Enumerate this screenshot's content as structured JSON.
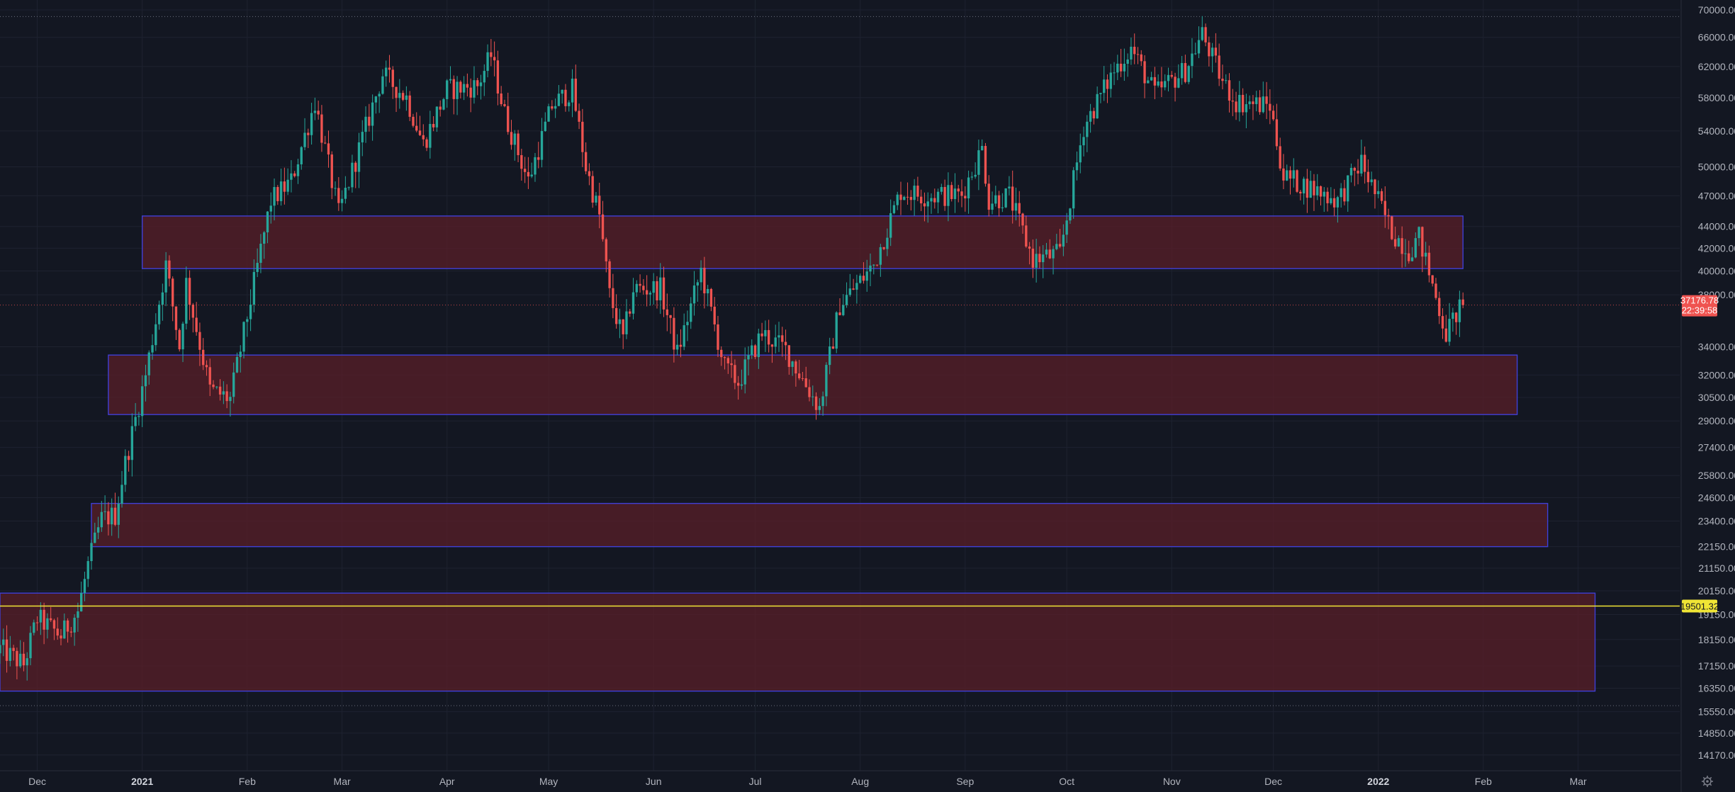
{
  "chart_data": {
    "type": "candlestick",
    "y_scale": "log",
    "ylim": [
      13700,
      71500
    ],
    "y_ticks": [
      "70000.00",
      "66000.00",
      "62000.00",
      "58000.00",
      "54000.00",
      "50000.00",
      "47000.00",
      "44000.00",
      "42000.00",
      "40000.00",
      "38000.00",
      "34000.00",
      "32000.00",
      "30500.00",
      "29000.00",
      "27400.00",
      "25800.00",
      "24600.00",
      "23400.00",
      "22150.00",
      "21150.00",
      "20150.00",
      "19150.00",
      "18150.00",
      "17150.00",
      "16350.00",
      "15550.00",
      "14850.00",
      "14170.00"
    ],
    "x_ticks": [
      {
        "label": "Dec",
        "date": "2020-12-01"
      },
      {
        "label": "2021",
        "date": "2021-01-01",
        "bold": true
      },
      {
        "label": "Feb",
        "date": "2021-02-01"
      },
      {
        "label": "Mar",
        "date": "2021-03-01"
      },
      {
        "label": "Apr",
        "date": "2021-04-01"
      },
      {
        "label": "May",
        "date": "2021-05-01"
      },
      {
        "label": "Jun",
        "date": "2021-06-01"
      },
      {
        "label": "Jul",
        "date": "2021-07-01"
      },
      {
        "label": "Aug",
        "date": "2021-08-01"
      },
      {
        "label": "Sep",
        "date": "2021-09-01"
      },
      {
        "label": "Oct",
        "date": "2021-10-01"
      },
      {
        "label": "Nov",
        "date": "2021-11-01"
      },
      {
        "label": "Dec",
        "date": "2021-12-01"
      },
      {
        "label": "2022",
        "date": "2022-01-01",
        "bold": true
      },
      {
        "label": "Feb",
        "date": "2022-02-01"
      },
      {
        "label": "Mar",
        "date": "2022-03-01"
      }
    ],
    "xlim": [
      "2020-11-20",
      "2022-03-31"
    ],
    "price_anchors": [
      {
        "date": "2020-11-20",
        "close": 17800
      },
      {
        "date": "2020-11-27",
        "close": 17200
      },
      {
        "date": "2020-12-01",
        "close": 19000
      },
      {
        "date": "2020-12-08",
        "close": 18300
      },
      {
        "date": "2020-12-13",
        "close": 19300
      },
      {
        "date": "2020-12-16",
        "close": 21300
      },
      {
        "date": "2020-12-20",
        "close": 23500
      },
      {
        "date": "2020-12-24",
        "close": 23700
      },
      {
        "date": "2020-12-27",
        "close": 26500
      },
      {
        "date": "2021-01-02",
        "close": 32000
      },
      {
        "date": "2021-01-08",
        "close": 40500
      },
      {
        "date": "2021-01-12",
        "close": 34000
      },
      {
        "date": "2021-01-14",
        "close": 39000
      },
      {
        "date": "2021-01-21",
        "close": 31000
      },
      {
        "date": "2021-01-27",
        "close": 30400
      },
      {
        "date": "2021-02-08",
        "close": 46500
      },
      {
        "date": "2021-02-14",
        "close": 48500
      },
      {
        "date": "2021-02-21",
        "close": 57500
      },
      {
        "date": "2021-02-28",
        "close": 45200
      },
      {
        "date": "2021-03-13",
        "close": 61000
      },
      {
        "date": "2021-03-20",
        "close": 58000
      },
      {
        "date": "2021-03-25",
        "close": 52500
      },
      {
        "date": "2021-04-01",
        "close": 59000
      },
      {
        "date": "2021-04-10",
        "close": 59500
      },
      {
        "date": "2021-04-14",
        "close": 63500
      },
      {
        "date": "2021-04-18",
        "close": 56000
      },
      {
        "date": "2021-04-25",
        "close": 48500
      },
      {
        "date": "2021-05-02",
        "close": 57000
      },
      {
        "date": "2021-05-08",
        "close": 59000
      },
      {
        "date": "2021-05-12",
        "close": 50000
      },
      {
        "date": "2021-05-16",
        "close": 45000
      },
      {
        "date": "2021-05-19",
        "close": 38000
      },
      {
        "date": "2021-05-23",
        "close": 34500
      },
      {
        "date": "2021-05-26",
        "close": 38500
      },
      {
        "date": "2021-06-03",
        "close": 38500
      },
      {
        "date": "2021-06-08",
        "close": 33500
      },
      {
        "date": "2021-06-15",
        "close": 40000
      },
      {
        "date": "2021-06-22",
        "close": 32500
      },
      {
        "date": "2021-06-26",
        "close": 31500
      },
      {
        "date": "2021-07-03",
        "close": 35000
      },
      {
        "date": "2021-07-10",
        "close": 33800
      },
      {
        "date": "2021-07-20",
        "close": 29800
      },
      {
        "date": "2021-07-26",
        "close": 37200
      },
      {
        "date": "2021-08-05",
        "close": 40500
      },
      {
        "date": "2021-08-13",
        "close": 47500
      },
      {
        "date": "2021-08-20",
        "close": 47000
      },
      {
        "date": "2021-08-31",
        "close": 47100
      },
      {
        "date": "2021-09-06",
        "close": 52000
      },
      {
        "date": "2021-09-08",
        "close": 46500
      },
      {
        "date": "2021-09-14",
        "close": 47000
      },
      {
        "date": "2021-09-21",
        "close": 41000
      },
      {
        "date": "2021-09-29",
        "close": 41500
      },
      {
        "date": "2021-10-06",
        "close": 54500
      },
      {
        "date": "2021-10-15",
        "close": 61500
      },
      {
        "date": "2021-10-20",
        "close": 64500
      },
      {
        "date": "2021-10-27",
        "close": 58500
      },
      {
        "date": "2021-11-05",
        "close": 61500
      },
      {
        "date": "2021-11-10",
        "close": 66500
      },
      {
        "date": "2021-11-16",
        "close": 60000
      },
      {
        "date": "2021-11-20",
        "close": 57500
      },
      {
        "date": "2021-11-30",
        "close": 57000
      },
      {
        "date": "2021-12-04",
        "close": 49000
      },
      {
        "date": "2021-12-14",
        "close": 47500
      },
      {
        "date": "2021-12-20",
        "close": 46500
      },
      {
        "date": "2021-12-27",
        "close": 50500
      },
      {
        "date": "2022-01-05",
        "close": 43500
      },
      {
        "date": "2022-01-10",
        "close": 41800
      },
      {
        "date": "2022-01-13",
        "close": 43000
      },
      {
        "date": "2022-01-21",
        "close": 35000
      },
      {
        "date": "2022-01-24",
        "close": 36500
      },
      {
        "date": "2022-01-26",
        "close": 37176.78
      }
    ],
    "zones": [
      {
        "from": "2021-01-01",
        "to": "2022-01-26",
        "low": 40200,
        "high": 45000
      },
      {
        "from": "2020-12-22",
        "to": "2022-02-11",
        "low": 29400,
        "high": 33400
      },
      {
        "from": "2020-12-17",
        "to": "2022-02-20",
        "low": 22150,
        "high": 24300
      },
      {
        "from": "2020-11-20",
        "to": "2022-03-06",
        "low": 16250,
        "high": 20050
      }
    ],
    "horizontal_line": {
      "value": 19501.32,
      "label": "19501.32",
      "color": "#f0e535"
    },
    "last_price": {
      "label": "37176.78",
      "value": 37176.78,
      "countdown": "22:39:58",
      "color": "#ef5350"
    },
    "up_color": "#26a69a",
    "down_color": "#ef5350",
    "zone_fill": "#5c1f28",
    "zone_border": "#3f3fd6",
    "grid": true,
    "top_dotted_value": 69000,
    "bottom_dotted_value": 15750
  },
  "footer": {
    "settings_icon": "gear-icon"
  }
}
